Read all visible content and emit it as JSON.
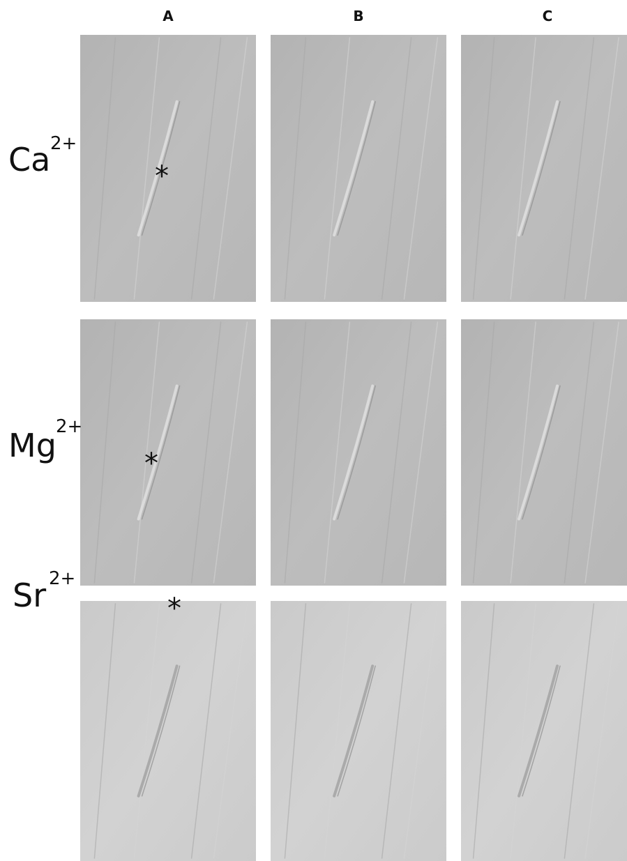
{
  "columns": [
    "A",
    "B",
    "C"
  ],
  "rows": [
    {
      "label": "Ca",
      "charge": "2+",
      "marker": "*"
    },
    {
      "label": "Mg",
      "charge": "2+",
      "marker": "*"
    },
    {
      "label": "Sr",
      "charge": "2+",
      "marker": "*"
    }
  ]
}
